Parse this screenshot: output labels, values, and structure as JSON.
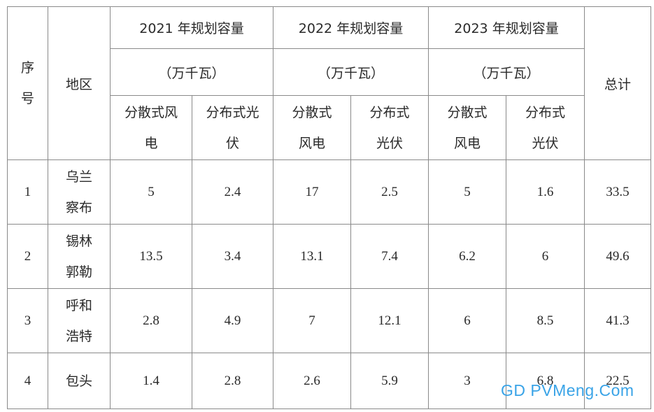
{
  "table": {
    "header": {
      "index": "序\n号",
      "region": "地区",
      "years": [
        {
          "title": "2021 年规划容量",
          "unit": "（万千瓦）"
        },
        {
          "title": "2022 年规划容量",
          "unit": "（万千瓦）"
        },
        {
          "title": "2023 年规划容量",
          "unit": "（万千瓦）"
        }
      ],
      "total": "总计",
      "sub": [
        "分散式风\n电",
        "分布式光\n伏",
        "分散式\n风电",
        "分布式\n光伏",
        "分散式\n风电",
        "分布式\n光伏"
      ]
    },
    "rows": [
      {
        "index": "1",
        "region": "乌兰\n察布",
        "values": [
          "5",
          "2.4",
          "17",
          "2.5",
          "5",
          "1.6"
        ],
        "total": "33.5"
      },
      {
        "index": "2",
        "region": "锡林\n郭勒",
        "values": [
          "13.5",
          "3.4",
          "13.1",
          "7.4",
          "6.2",
          "6"
        ],
        "total": "49.6"
      },
      {
        "index": "3",
        "region": "呼和\n浩特",
        "values": [
          "2.8",
          "4.9",
          "7",
          "12.1",
          "6",
          "8.5"
        ],
        "total": "41.3"
      },
      {
        "index": "4",
        "region": "包头",
        "values": [
          "1.4",
          "2.8",
          "2.6",
          "5.9",
          "3",
          "6.8"
        ],
        "total": "22.5"
      }
    ]
  },
  "watermark": "GD PVMeng.Com",
  "colors": {
    "border": "#8a8a8a",
    "watermark": "#2f9fe6"
  }
}
